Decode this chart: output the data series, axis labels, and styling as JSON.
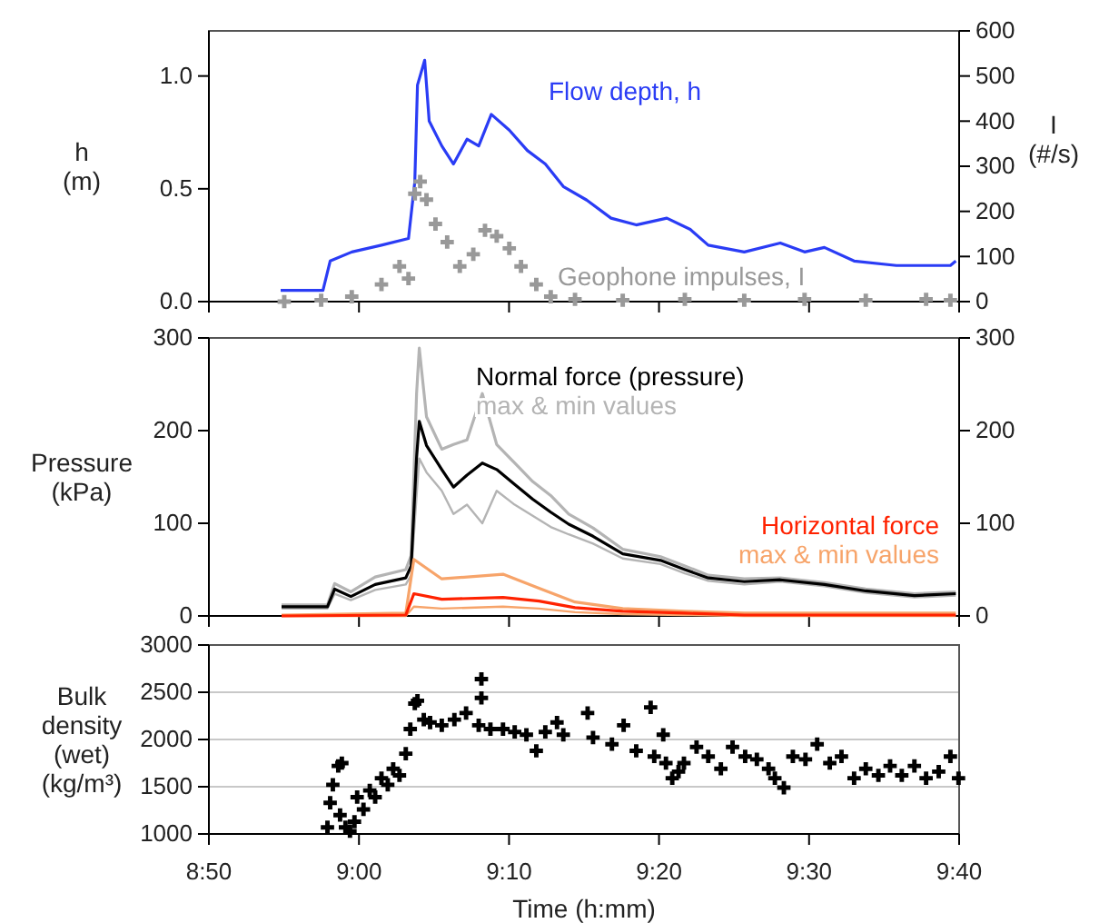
{
  "chart_data": [
    {
      "type": "line",
      "ylabel": "h\n(m)",
      "y2label": "I\n(#/s)",
      "tick_labels": "y",
      "xlim": [
        8.8333,
        9.6667
      ],
      "xticks": [
        {
          "value": 8.8333,
          "label": null
        },
        {
          "value": 9,
          "label": null
        },
        {
          "value": 9.1667,
          "label": null
        },
        {
          "value": 9.3333,
          "label": null
        },
        {
          "value": 9.5,
          "label": null
        },
        {
          "value": 9.6667,
          "label": null
        }
      ],
      "ylim": [
        0,
        1.2
      ],
      "yticks": [
        {
          "value": 0,
          "label": "0.0"
        },
        {
          "value": 0.5,
          "label": "0.5"
        },
        {
          "value": 1,
          "label": "1.0"
        }
      ],
      "y2lim": [
        0,
        600
      ],
      "y2ticks": [
        0,
        100,
        200,
        300,
        400,
        500,
        600
      ],
      "series": [
        {
          "name": "Flow depth, h",
          "color": "#2a3cf5",
          "x": [
            8.913,
            8.96,
            8.968,
            8.992,
            9.025,
            9.055,
            9.062,
            9.065,
            9.073,
            9.078,
            9.092,
            9.105,
            9.12,
            9.133,
            9.147,
            9.167,
            9.187,
            9.207,
            9.227,
            9.253,
            9.28,
            9.308,
            9.342,
            9.368,
            9.388,
            9.428,
            9.468,
            9.495,
            9.517,
            9.55,
            9.597,
            9.657,
            9.663
          ],
          "values": [
            0.05,
            0.05,
            0.18,
            0.22,
            0.25,
            0.28,
            0.53,
            0.96,
            1.07,
            0.8,
            0.69,
            0.61,
            0.72,
            0.69,
            0.83,
            0.76,
            0.67,
            0.61,
            0.51,
            0.45,
            0.37,
            0.34,
            0.37,
            0.32,
            0.25,
            0.22,
            0.26,
            0.22,
            0.24,
            0.18,
            0.16,
            0.16,
            0.18
          ]
        },
        {
          "name": "Geophone impulses, I",
          "type": "scatter",
          "marker": "cross",
          "axis": "y2",
          "color": "#999999",
          "x": [
            8.917,
            8.958,
            8.992,
            9.025,
            9.045,
            9.055,
            9.062,
            9.068,
            9.075,
            9.085,
            9.098,
            9.112,
            9.127,
            9.14,
            9.153,
            9.167,
            9.18,
            9.197,
            9.213,
            9.24,
            9.293,
            9.362,
            9.428,
            9.495,
            9.563,
            9.63,
            9.657
          ],
          "values": [
            0,
            3,
            11,
            38,
            78,
            51,
            239,
            266,
            226,
            172,
            132,
            78,
            105,
            158,
            145,
            118,
            78,
            38,
            11,
            5,
            3,
            5,
            3,
            5,
            3,
            5,
            3
          ]
        }
      ]
    },
    {
      "type": "line",
      "ylabel": "Pressure\n(kPa)",
      "tick_labels": "y",
      "xlim": [
        8.8333,
        9.6667
      ],
      "xticks": [
        {
          "value": 8.8333,
          "label": null
        },
        {
          "value": 9,
          "label": null
        },
        {
          "value": 9.1667,
          "label": null
        },
        {
          "value": 9.3333,
          "label": null
        },
        {
          "value": 9.5,
          "label": null
        },
        {
          "value": 9.6667,
          "label": null
        }
      ],
      "ylim": [
        0,
        300
      ],
      "yticks": [
        0,
        100,
        200,
        300
      ],
      "y2lim": [
        0,
        300
      ],
      "y2ticks": [
        0,
        100,
        200,
        300
      ],
      "series": [
        {
          "name": "max & min values",
          "color": "#b4b4b4",
          "x": [
            8.914,
            8.965,
            8.973,
            8.991,
            9.018,
            9.052,
            9.058,
            9.064,
            9.067,
            9.075,
            9.092,
            9.105,
            9.12,
            9.137,
            9.153,
            9.173,
            9.193,
            9.213,
            9.233,
            9.26,
            9.293,
            9.335,
            9.362,
            9.388,
            9.428,
            9.468,
            9.517,
            9.563,
            9.617,
            9.663
          ],
          "values": [
            12,
            12,
            35,
            26,
            42,
            50,
            65,
            240,
            289,
            215,
            180,
            185,
            190,
            240,
            185,
            165,
            145,
            130,
            110,
            95,
            72,
            64,
            54,
            44,
            40,
            41,
            36,
            29,
            24,
            26
          ]
        },
        {
          "color": "#b4b4b4",
          "x": [
            8.914,
            8.965,
            8.973,
            8.991,
            9.018,
            9.052,
            9.058,
            9.064,
            9.067,
            9.075,
            9.092,
            9.105,
            9.12,
            9.137,
            9.153,
            9.173,
            9.193,
            9.213,
            9.233,
            9.26,
            9.293,
            9.335,
            9.362,
            9.388,
            9.428,
            9.468,
            9.517,
            9.563,
            9.617,
            9.663
          ],
          "values": [
            8,
            8,
            24,
            17,
            28,
            34,
            44,
            130,
            170,
            155,
            135,
            110,
            120,
            100,
            135,
            120,
            108,
            96,
            88,
            78,
            62,
            56,
            46,
            38,
            34,
            37,
            32,
            25,
            20,
            22
          ]
        },
        {
          "name": "Normal force (pressure)",
          "color": "#000000",
          "x": [
            8.914,
            8.965,
            8.973,
            8.991,
            9.018,
            9.052,
            9.058,
            9.064,
            9.067,
            9.075,
            9.092,
            9.105,
            9.12,
            9.137,
            9.153,
            9.173,
            9.193,
            9.213,
            9.233,
            9.26,
            9.293,
            9.335,
            9.362,
            9.388,
            9.428,
            9.468,
            9.517,
            9.563,
            9.617,
            9.663
          ],
          "values": [
            10,
            10,
            29,
            21,
            34,
            41,
            54,
            171,
            210,
            184,
            158,
            139,
            152,
            165,
            158,
            142,
            126,
            112,
            99,
            86,
            67,
            60,
            50,
            41,
            37,
            39,
            34,
            27,
            22,
            24
          ]
        },
        {
          "name": "max & min values",
          "color": "#f7a46a",
          "x": [
            8.914,
            9.052,
            9.061,
            9.092,
            9.16,
            9.2,
            9.24,
            9.293,
            9.362,
            9.428,
            9.663
          ],
          "values": [
            1,
            3,
            61,
            40,
            45,
            30,
            15,
            8,
            5,
            3,
            3
          ]
        },
        {
          "color": "#f7a46a",
          "x": [
            8.914,
            9.052,
            9.061,
            9.092,
            9.16,
            9.2,
            9.24,
            9.293,
            9.362,
            9.428,
            9.663
          ],
          "values": [
            0,
            0,
            10,
            8,
            10,
            8,
            4,
            2,
            1,
            0,
            0
          ]
        },
        {
          "name": "Horizontal force",
          "color": "#ff2200",
          "x": [
            8.914,
            9.052,
            9.061,
            9.092,
            9.16,
            9.2,
            9.24,
            9.293,
            9.362,
            9.428,
            9.663
          ],
          "values": [
            0,
            1,
            24,
            18,
            20,
            16,
            9,
            5,
            3,
            1,
            1
          ]
        }
      ]
    },
    {
      "type": "scatter",
      "ylabel": "Bulk\ndensity\n(wet)\n(kg/m³)",
      "xlabel": "Time (h:mm)",
      "grid": "y",
      "marker": "cross",
      "xlim": [
        8.8333,
        9.6667
      ],
      "xticks": [
        {
          "value": 8.8333,
          "label": "8:50"
        },
        {
          "value": 9,
          "label": "9:00"
        },
        {
          "value": 9.1667,
          "label": "9:10"
        },
        {
          "value": 9.3333,
          "label": "9:20"
        },
        {
          "value": 9.5,
          "label": "9:30"
        },
        {
          "value": 9.6667,
          "label": "9:40"
        }
      ],
      "ylim": [
        1000,
        3000
      ],
      "yticks": [
        1000,
        1500,
        2000,
        2500,
        3000
      ],
      "series": [
        {
          "color": "#000000",
          "x": [
            8.965,
            8.968,
            8.971,
            8.977,
            8.981,
            8.979,
            8.985,
            8.99,
            8.995,
            8.998,
            9.005,
            9.012,
            9.018,
            9.025,
            9.032,
            9.038,
            9.045,
            9.052,
            9.057,
            9.062,
            9.065,
            9.072,
            9.079,
            9.092,
            9.106,
            9.119,
            9.133,
            9.136,
            9.136,
            9.146,
            9.16,
            9.173,
            9.186,
            9.197,
            9.207,
            9.22,
            9.227,
            9.254,
            9.26,
            9.281,
            9.294,
            9.308,
            9.324,
            9.328,
            9.338,
            9.341,
            9.348,
            9.355,
            9.361,
            9.375,
            9.388,
            9.402,
            9.415,
            9.429,
            9.442,
            9.455,
            9.462,
            9.472,
            9.482,
            9.496,
            9.509,
            9.523,
            9.536,
            9.55,
            9.563,
            9.577,
            9.59,
            9.603,
            9.617,
            9.63,
            9.644,
            9.657,
            9.666
          ],
          "values": [
            1070,
            1330,
            1520,
            1720,
            1750,
            1200,
            1070,
            1030,
            1130,
            1390,
            1260,
            1460,
            1390,
            1590,
            1520,
            1690,
            1620,
            1850,
            2110,
            2380,
            2410,
            2210,
            2180,
            2150,
            2210,
            2280,
            2150,
            2640,
            2440,
            2110,
            2110,
            2080,
            2050,
            1880,
            2080,
            2180,
            2050,
            2280,
            2020,
            1950,
            2150,
            1880,
            2340,
            1820,
            2050,
            1750,
            1590,
            1660,
            1750,
            1920,
            1820,
            1690,
            1920,
            1820,
            1790,
            1690,
            1590,
            1490,
            1820,
            1790,
            1950,
            1750,
            1820,
            1590,
            1690,
            1620,
            1720,
            1620,
            1720,
            1590,
            1660,
            1820,
            1590
          ]
        }
      ]
    }
  ]
}
